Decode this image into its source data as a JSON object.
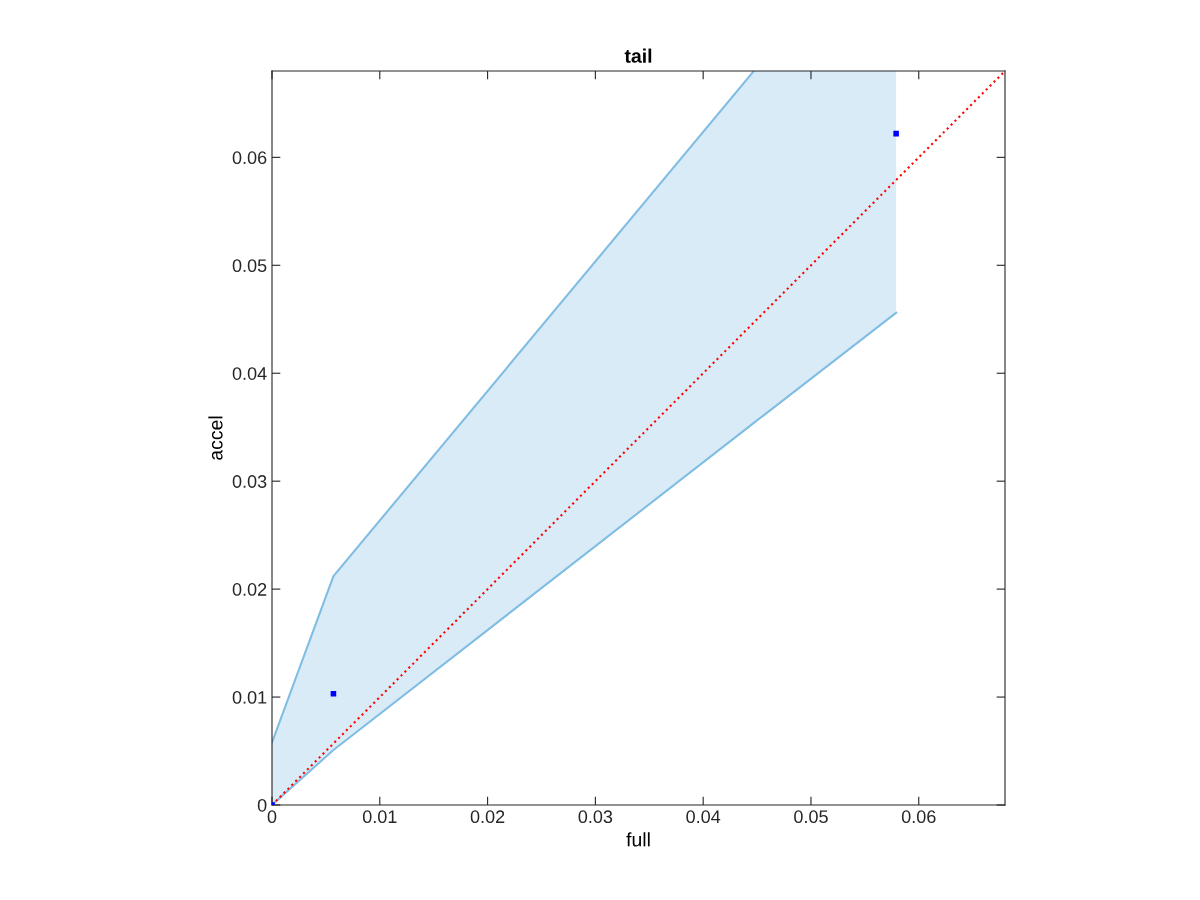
{
  "chart_data": {
    "type": "scatter",
    "title": "tail",
    "xlabel": "full",
    "ylabel": "accel",
    "xlim": [
      0,
      0.068
    ],
    "ylim": [
      0,
      0.068
    ],
    "xticks": [
      0,
      0.01,
      0.02,
      0.03,
      0.04,
      0.05,
      0.06
    ],
    "yticks": [
      0,
      0.01,
      0.02,
      0.03,
      0.04,
      0.05,
      0.06
    ],
    "grid": false,
    "series": [
      {
        "type": "line",
        "color": "#80bde3",
        "x": [
          0,
          0.0057,
          0.0447,
          0.0579
        ],
        "values": [
          0.0058,
          0.0212,
          0.068,
          null
        ],
        "lower": [
          0,
          0.0051,
          0.0354,
          0.0456
        ],
        "upper": [
          0.0058,
          0.0212,
          0.068,
          0.068
        ]
      },
      {
        "type": "line",
        "color": "#80bde3",
        "x": [
          0,
          0.0057,
          0.0447,
          0.0579
        ],
        "values": [
          0,
          0.0051,
          0.0354,
          0.0456
        ]
      },
      {
        "type": "line",
        "color": "#ff0000",
        "line_style": "dotted",
        "x": [
          0,
          0.068
        ],
        "values": [
          0,
          0.068
        ]
      },
      {
        "color": "#0000ff",
        "marker": "square",
        "x": [
          0,
          0.0057,
          0.0579
        ],
        "values": [
          0,
          0.0103,
          0.0622
        ]
      }
    ]
  }
}
